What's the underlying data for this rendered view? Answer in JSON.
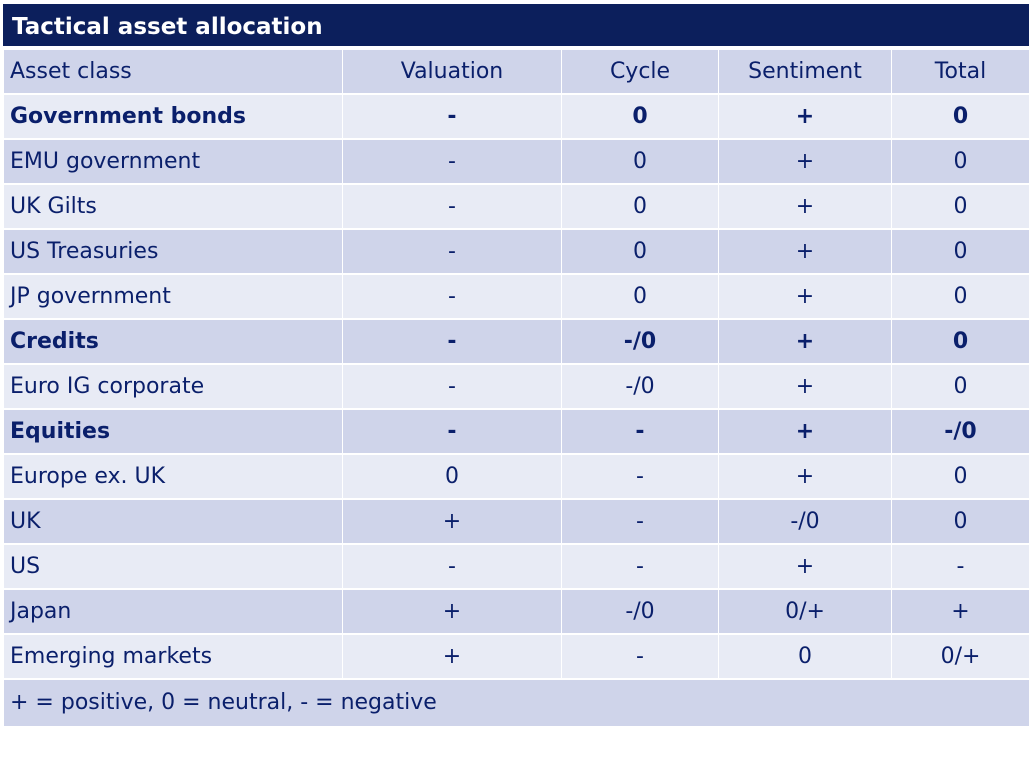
{
  "title": "Tactical asset allocation",
  "columns": [
    "Asset class",
    "Valuation",
    "Cycle",
    "Sentiment",
    "Total"
  ],
  "rows": [
    {
      "label": "Government bonds",
      "values": [
        "-",
        "0",
        "+",
        "0"
      ],
      "bold": true
    },
    {
      "label": "EMU government",
      "values": [
        "-",
        "0",
        "+",
        "0"
      ],
      "bold": false
    },
    {
      "label": "UK Gilts",
      "values": [
        "-",
        "0",
        "+",
        "0"
      ],
      "bold": false
    },
    {
      "label": "US Treasuries",
      "values": [
        "-",
        "0",
        "+",
        "0"
      ],
      "bold": false
    },
    {
      "label": "JP government",
      "values": [
        "-",
        "0",
        "+",
        "0"
      ],
      "bold": false
    },
    {
      "label": "Credits",
      "values": [
        "-",
        "-/0",
        "+",
        "0"
      ],
      "bold": true
    },
    {
      "label": "Euro IG corporate",
      "values": [
        "-",
        "-/0",
        "+",
        "0"
      ],
      "bold": false
    },
    {
      "label": "Equities",
      "values": [
        "-",
        "-",
        "+",
        "-/0"
      ],
      "bold": true
    },
    {
      "label": "Europe ex. UK",
      "values": [
        "0",
        "-",
        "+",
        "0"
      ],
      "bold": false
    },
    {
      "label": "UK",
      "values": [
        "+",
        "-",
        "-/0",
        "0"
      ],
      "bold": false
    },
    {
      "label": "US",
      "values": [
        "-",
        "-",
        "+",
        "-"
      ],
      "bold": false
    },
    {
      "label": "Japan",
      "values": [
        "+",
        "-/0",
        "0/+",
        "+"
      ],
      "bold": false
    },
    {
      "label": "Emerging markets",
      "values": [
        "+",
        "-",
        "0",
        "0/+"
      ],
      "bold": false
    }
  ],
  "legend": "+ = positive, 0 = neutral, - = negative",
  "colors": {
    "title_bg": "#0c1f5c",
    "band_dark": "#cfd4ea",
    "band_light": "#e8ebf5",
    "text": "#0a1f6b"
  }
}
